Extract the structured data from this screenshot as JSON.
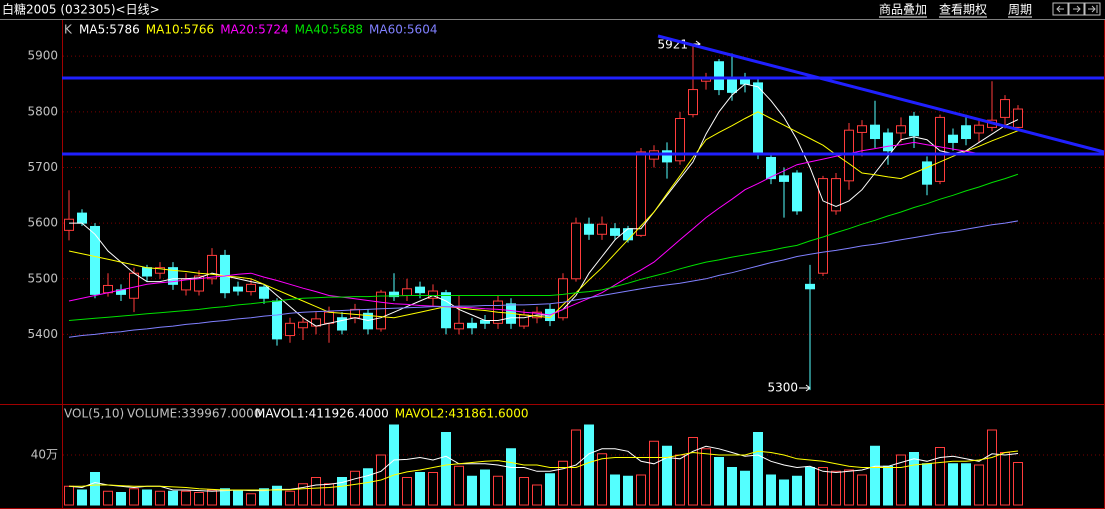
{
  "header": {
    "title": "白糖2005 (032305)<日线>",
    "menu": [
      "商品叠加",
      "查看期权",
      "周期"
    ]
  },
  "chart_data": [
    {
      "type": "candlestick",
      "label": "K",
      "open": [
        5587,
        5618,
        5594,
        5475,
        5480,
        5465,
        5520,
        5510,
        5520,
        5480,
        5478,
        5500,
        5542,
        5485,
        5477,
        5485,
        5460,
        5398,
        5412,
        5415,
        5420,
        5430,
        5430,
        5438,
        5410,
        5476,
        5470,
        5485,
        5465,
        5475,
        5410,
        5420,
        5425,
        5420,
        5455,
        5415,
        5430,
        5445,
        5430,
        5500,
        5598,
        5580,
        5590,
        5590,
        5578,
        5715,
        5730,
        5712,
        5795,
        5855,
        5890,
        5862,
        5860,
        5852,
        5718,
        5685,
        5690,
        5490,
        5510,
        5622,
        5676,
        5763,
        5776,
        5762,
        5762,
        5792,
        5710,
        5675,
        5758,
        5775,
        5762,
        5772,
        5790,
        5772
      ],
      "high": [
        5659,
        5625,
        5600,
        5510,
        5490,
        5520,
        5525,
        5530,
        5530,
        5510,
        5515,
        5555,
        5552,
        5495,
        5500,
        5490,
        5465,
        5430,
        5430,
        5440,
        5450,
        5440,
        5455,
        5445,
        5480,
        5510,
        5500,
        5495,
        5490,
        5480,
        5470,
        5430,
        5435,
        5470,
        5465,
        5445,
        5450,
        5455,
        5510,
        5610,
        5610,
        5612,
        5600,
        5595,
        5735,
        5740,
        5745,
        5800,
        5921,
        5870,
        5895,
        5905,
        5870,
        5860,
        5725,
        5700,
        5695,
        5525,
        5685,
        5690,
        5780,
        5785,
        5820,
        5770,
        5790,
        5800,
        5720,
        5795,
        5770,
        5795,
        5785,
        5855,
        5830,
        5812
      ],
      "low": [
        5569,
        5595,
        5465,
        5468,
        5460,
        5440,
        5495,
        5500,
        5480,
        5470,
        5470,
        5490,
        5465,
        5470,
        5470,
        5455,
        5380,
        5385,
        5390,
        5400,
        5385,
        5400,
        5420,
        5400,
        5405,
        5460,
        5460,
        5465,
        5450,
        5400,
        5400,
        5400,
        5410,
        5410,
        5410,
        5410,
        5420,
        5415,
        5425,
        5495,
        5570,
        5570,
        5570,
        5565,
        5575,
        5700,
        5680,
        5705,
        5790,
        5840,
        5830,
        5820,
        5835,
        5715,
        5670,
        5610,
        5615,
        5300,
        5505,
        5615,
        5660,
        5720,
        5735,
        5705,
        5745,
        5735,
        5650,
        5670,
        5730,
        5740,
        5745,
        5765,
        5770,
        5765
      ],
      "close": [
        5607,
        5600,
        5472,
        5488,
        5472,
        5510,
        5505,
        5520,
        5490,
        5500,
        5505,
        5542,
        5475,
        5478,
        5490,
        5465,
        5392,
        5420,
        5422,
        5428,
        5440,
        5408,
        5445,
        5410,
        5476,
        5468,
        5482,
        5475,
        5478,
        5412,
        5420,
        5412,
        5420,
        5460,
        5420,
        5435,
        5440,
        5425,
        5500,
        5600,
        5580,
        5598,
        5578,
        5570,
        5728,
        5730,
        5710,
        5788,
        5840,
        5862,
        5840,
        5835,
        5850,
        5724,
        5680,
        5675,
        5622,
        5482,
        5680,
        5680,
        5767,
        5775,
        5752,
        5730,
        5775,
        5757,
        5670,
        5790,
        5745,
        5752,
        5776,
        5785,
        5822,
        5805
      ],
      "up_color": "#ff3c3c",
      "down_color": "#54ffff",
      "ylim": [
        5275,
        5965
      ],
      "yticks": [
        5400,
        5500,
        5600,
        5700,
        5800,
        5900
      ],
      "grid": true,
      "annotations": [
        5921,
        5300
      ],
      "ma": [
        {
          "name": "MA5:5786",
          "color": "#ffffff",
          "values": [
            5600,
            5600,
            5580,
            5550,
            5530,
            5510,
            5495,
            5495,
            5500,
            5500,
            5502,
            5510,
            5505,
            5500,
            5495,
            5490,
            5470,
            5450,
            5430,
            5415,
            5420,
            5425,
            5430,
            5425,
            5430,
            5440,
            5450,
            5460,
            5470,
            5460,
            5445,
            5435,
            5425,
            5425,
            5430,
            5430,
            5435,
            5435,
            5445,
            5470,
            5510,
            5540,
            5570,
            5590,
            5590,
            5620,
            5650,
            5680,
            5710,
            5760,
            5800,
            5830,
            5850,
            5845,
            5820,
            5790,
            5750,
            5700,
            5640,
            5630,
            5640,
            5660,
            5690,
            5720,
            5750,
            5755,
            5750,
            5730,
            5725,
            5730,
            5745,
            5760,
            5775,
            5786
          ]
        },
        {
          "name": "MA10:5766",
          "color": "#ffff00",
          "values": [
            5550,
            5545,
            5540,
            5535,
            5530,
            5525,
            5520,
            5518,
            5515,
            5513,
            5510,
            5508,
            5505,
            5503,
            5500,
            5490,
            5480,
            5470,
            5460,
            5450,
            5440,
            5438,
            5436,
            5434,
            5432,
            5430,
            5435,
            5440,
            5445,
            5450,
            5448,
            5445,
            5443,
            5440,
            5438,
            5435,
            5433,
            5430,
            5453,
            5475,
            5498,
            5520,
            5545,
            5570,
            5595,
            5620,
            5653,
            5685,
            5718,
            5750,
            5763,
            5775,
            5788,
            5800,
            5788,
            5776,
            5764,
            5752,
            5740,
            5723,
            5707,
            5690,
            5687,
            5683,
            5680,
            5690,
            5700,
            5710,
            5720,
            5729,
            5738,
            5748,
            5757,
            5766
          ]
        },
        {
          "name": "MA20:5724",
          "color": "#ff00ff",
          "values": [
            5460,
            5465,
            5470,
            5475,
            5480,
            5485,
            5490,
            5493,
            5495,
            5498,
            5500,
            5503,
            5505,
            5508,
            5510,
            5503,
            5497,
            5490,
            5483,
            5477,
            5470,
            5467,
            5464,
            5461,
            5458,
            5455,
            5454,
            5452,
            5451,
            5450,
            5449,
            5448,
            5446,
            5445,
            5443,
            5440,
            5438,
            5435,
            5445,
            5455,
            5465,
            5475,
            5489,
            5503,
            5516,
            5530,
            5550,
            5570,
            5590,
            5610,
            5627,
            5643,
            5660,
            5671,
            5683,
            5694,
            5705,
            5710,
            5715,
            5720,
            5725,
            5730,
            5734,
            5738,
            5741,
            5745,
            5741,
            5737,
            5733,
            5729,
            5725,
            5725,
            5724,
            5724
          ]
        },
        {
          "name": "MA40:5688",
          "color": "#00e000",
          "values": [
            5425,
            5427,
            5429,
            5431,
            5433,
            5435,
            5437,
            5439,
            5441,
            5443,
            5445,
            5448,
            5450,
            5453,
            5455,
            5458,
            5460,
            5463,
            5465,
            5466,
            5467,
            5467,
            5468,
            5468,
            5469,
            5469,
            5470,
            5470,
            5470,
            5470,
            5470,
            5470,
            5470,
            5470,
            5470,
            5470,
            5470,
            5470,
            5472,
            5475,
            5477,
            5480,
            5486,
            5492,
            5499,
            5505,
            5511,
            5518,
            5524,
            5530,
            5534,
            5539,
            5543,
            5547,
            5551,
            5556,
            5560,
            5568,
            5575,
            5583,
            5590,
            5598,
            5605,
            5613,
            5620,
            5628,
            5635,
            5643,
            5650,
            5658,
            5665,
            5673,
            5680,
            5688
          ]
        },
        {
          "name": "MA60:5604",
          "color": "#8080ff",
          "values": [
            5395,
            5398,
            5400,
            5403,
            5405,
            5408,
            5410,
            5413,
            5415,
            5418,
            5420,
            5423,
            5425,
            5428,
            5430,
            5433,
            5435,
            5438,
            5440,
            5441,
            5442,
            5443,
            5444,
            5445,
            5446,
            5447,
            5448,
            5449,
            5450,
            5450,
            5451,
            5451,
            5452,
            5452,
            5453,
            5453,
            5454,
            5455,
            5458,
            5462,
            5466,
            5470,
            5474,
            5478,
            5482,
            5486,
            5489,
            5492,
            5496,
            5500,
            5506,
            5511,
            5517,
            5523,
            5529,
            5534,
            5540,
            5544,
            5548,
            5551,
            5555,
            5559,
            5562,
            5566,
            5570,
            5574,
            5578,
            5582,
            5585,
            5589,
            5593,
            5597,
            5600,
            5604
          ]
        }
      ]
    },
    {
      "type": "bar",
      "title": "VOL(5,10)",
      "volume_label": "VOLUME:339967.0000",
      "values": [
        150000,
        120000,
        260000,
        110000,
        100000,
        130000,
        120000,
        110000,
        110000,
        110000,
        100000,
        120000,
        130000,
        120000,
        90000,
        130000,
        150000,
        110000,
        170000,
        220000,
        170000,
        220000,
        270000,
        290000,
        400000,
        640000,
        220000,
        260000,
        260000,
        580000,
        310000,
        230000,
        280000,
        230000,
        450000,
        220000,
        160000,
        250000,
        350000,
        600000,
        640000,
        410000,
        240000,
        230000,
        240000,
        510000,
        470000,
        400000,
        540000,
        450000,
        380000,
        300000,
        270000,
        580000,
        240000,
        200000,
        230000,
        300000,
        300000,
        270000,
        280000,
        240000,
        470000,
        310000,
        400000,
        420000,
        330000,
        460000,
        330000,
        330000,
        320000,
        600000,
        420000,
        339967
      ],
      "ylim": [
        0,
        800000
      ],
      "yticks": [
        {
          "value": 400000,
          "label": "40万"
        }
      ],
      "grid": true,
      "series": [
        {
          "name": "MAVOL1:411926.4000",
          "color": "#ffffff",
          "values": [
            150000,
            140000,
            180000,
            160000,
            150000,
            140000,
            150000,
            150000,
            120000,
            120000,
            115000,
            110000,
            115000,
            120000,
            115000,
            115000,
            125000,
            125000,
            140000,
            160000,
            165000,
            180000,
            210000,
            235000,
            270000,
            360000,
            365000,
            380000,
            360000,
            390000,
            330000,
            330000,
            330000,
            320000,
            300000,
            300000,
            270000,
            270000,
            290000,
            320000,
            410000,
            450000,
            450000,
            430000,
            350000,
            330000,
            380000,
            370000,
            430000,
            470000,
            450000,
            420000,
            390000,
            400000,
            350000,
            320000,
            300000,
            310000,
            270000,
            260000,
            270000,
            280000,
            310000,
            310000,
            340000,
            370000,
            350000,
            380000,
            390000,
            370000,
            350000,
            410000,
            400000,
            411926.4
          ]
        },
        {
          "name": "MAVOL2:431861.6000",
          "color": "#ffff00",
          "values": [
            150000,
            150000,
            160000,
            160000,
            155000,
            150000,
            150000,
            150000,
            145000,
            140000,
            130000,
            125000,
            120000,
            120000,
            120000,
            120000,
            120000,
            122000,
            130000,
            135000,
            140000,
            150000,
            165000,
            180000,
            200000,
            240000,
            265000,
            280000,
            300000,
            320000,
            330000,
            340000,
            350000,
            355000,
            340000,
            320000,
            320000,
            300000,
            300000,
            300000,
            340000,
            370000,
            380000,
            380000,
            380000,
            380000,
            380000,
            400000,
            420000,
            410000,
            400000,
            400000,
            400000,
            430000,
            420000,
            400000,
            370000,
            360000,
            350000,
            330000,
            310000,
            300000,
            300000,
            300000,
            300000,
            320000,
            330000,
            340000,
            350000,
            350000,
            360000,
            380000,
            420000,
            431861.6
          ]
        }
      ]
    }
  ]
}
